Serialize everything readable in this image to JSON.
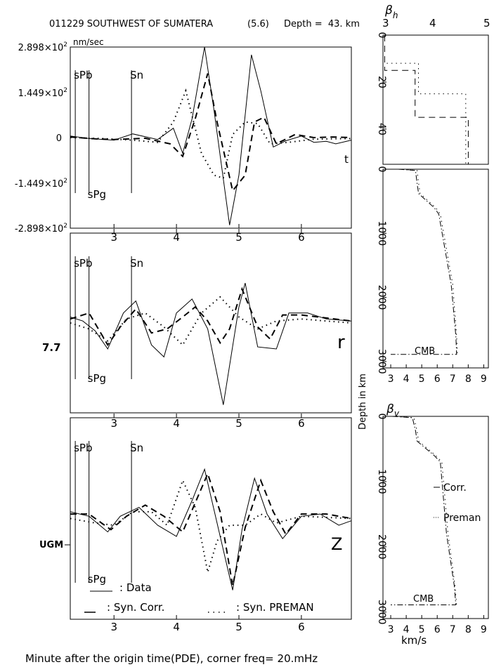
{
  "header": {
    "event": "011229 SOUTHWEST OF SUMATERA",
    "magnitude": "(5.6)",
    "depth": "Depth =  43. km",
    "beta_h_label": "β",
    "beta_h_sub": "h",
    "top_ticks": [
      "3",
      "4",
      "5"
    ]
  },
  "footer": "Minute after the origin time(PDE), corner freq= 20.mHz",
  "legend": {
    "data": ": Data",
    "corr": ": Syn. Corr.",
    "preman": ": Syn. PREMAN"
  },
  "chart_data": [
    {
      "type": "line",
      "panel": "t",
      "component_label": "t",
      "unit_label": "nm/sec",
      "xlim": [
        2.3,
        6.8
      ],
      "x_ticks": [
        "3",
        "4",
        "5",
        "6"
      ],
      "ylim": [
        -289.8,
        289.8
      ],
      "y_ticks": [
        {
          "value": 289.8,
          "label": "2.898×10",
          "exp": "2"
        },
        {
          "value": 144.9,
          "label": "1.449×10",
          "exp": "2"
        },
        {
          "value": 0,
          "label": "0",
          "exp": ""
        },
        {
          "value": -144.9,
          "label": "-1.449×10",
          "exp": "2"
        },
        {
          "value": -289.8,
          "label": "-2.898×10",
          "exp": "2"
        }
      ],
      "phases": [
        {
          "name": "sPb",
          "x": 2.38
        },
        {
          "name": "sPg",
          "x": 2.6
        },
        {
          "name": "Sn",
          "x": 3.28
        }
      ],
      "series": [
        {
          "name": "Data",
          "style": "solid",
          "points": [
            [
              2.3,
              5
            ],
            [
              2.6,
              -3
            ],
            [
              3.0,
              -8
            ],
            [
              3.3,
              12
            ],
            [
              3.7,
              -6
            ],
            [
              3.95,
              30
            ],
            [
              4.1,
              -50
            ],
            [
              4.25,
              60
            ],
            [
              4.45,
              290
            ],
            [
              4.6,
              90
            ],
            [
              4.85,
              -280
            ],
            [
              5.0,
              -120
            ],
            [
              5.2,
              265
            ],
            [
              5.35,
              150
            ],
            [
              5.55,
              -30
            ],
            [
              5.75,
              -10
            ],
            [
              6.0,
              5
            ],
            [
              6.2,
              -15
            ],
            [
              6.4,
              -12
            ],
            [
              6.55,
              -20
            ],
            [
              6.8,
              -8
            ]
          ]
        },
        {
          "name": "Syn. Corr.",
          "style": "dashed",
          "points": [
            [
              2.3,
              2
            ],
            [
              2.7,
              -4
            ],
            [
              3.0,
              -6
            ],
            [
              3.5,
              -2
            ],
            [
              3.9,
              -20
            ],
            [
              4.1,
              -60
            ],
            [
              4.3,
              60
            ],
            [
              4.5,
              205
            ],
            [
              4.65,
              50
            ],
            [
              4.9,
              -170
            ],
            [
              5.1,
              -120
            ],
            [
              5.25,
              50
            ],
            [
              5.4,
              65
            ],
            [
              5.6,
              -20
            ],
            [
              5.9,
              10
            ],
            [
              6.2,
              0
            ],
            [
              6.5,
              2
            ],
            [
              6.8,
              0
            ]
          ]
        },
        {
          "name": "Syn. PREMAN",
          "style": "dotted",
          "points": [
            [
              2.3,
              0
            ],
            [
              2.8,
              -3
            ],
            [
              3.3,
              -8
            ],
            [
              3.7,
              -15
            ],
            [
              3.95,
              50
            ],
            [
              4.15,
              150
            ],
            [
              4.4,
              -50
            ],
            [
              4.6,
              -120
            ],
            [
              4.75,
              -130
            ],
            [
              4.9,
              10
            ],
            [
              5.1,
              50
            ],
            [
              5.3,
              45
            ],
            [
              5.5,
              -20
            ],
            [
              5.8,
              -15
            ],
            [
              6.2,
              -5
            ],
            [
              6.8,
              -3
            ]
          ]
        }
      ]
    },
    {
      "type": "line",
      "panel": "r",
      "component_label": "r",
      "scale_label": "7.7",
      "xlim": [
        2.3,
        6.8
      ],
      "x_ticks": [
        "3",
        "4",
        "5",
        "6"
      ],
      "ylim": [
        -4.5,
        4.5
      ],
      "phases": [
        {
          "name": "sPb",
          "x": 2.38
        },
        {
          "name": "sPg",
          "x": 2.6
        },
        {
          "name": "Sn",
          "x": 3.28
        }
      ],
      "series": [
        {
          "name": "Data",
          "style": "solid",
          "points": [
            [
              2.3,
              0.3
            ],
            [
              2.5,
              0.1
            ],
            [
              2.7,
              -0.4
            ],
            [
              2.9,
              -1.3
            ],
            [
              3.15,
              0.5
            ],
            [
              3.35,
              1.1
            ],
            [
              3.6,
              -1.1
            ],
            [
              3.8,
              -1.7
            ],
            [
              4.0,
              0.5
            ],
            [
              4.25,
              1.2
            ],
            [
              4.5,
              -0.3
            ],
            [
              4.75,
              -4.1
            ],
            [
              5.0,
              0.8
            ],
            [
              5.1,
              2.0
            ],
            [
              5.3,
              -1.2
            ],
            [
              5.6,
              -1.3
            ],
            [
              5.8,
              0.5
            ],
            [
              6.1,
              0.5
            ],
            [
              6.4,
              0.2
            ],
            [
              6.8,
              0.1
            ]
          ]
        },
        {
          "name": "Syn. Corr.",
          "style": "dashed",
          "points": [
            [
              2.3,
              0.2
            ],
            [
              2.6,
              0.5
            ],
            [
              2.9,
              -1.1
            ],
            [
              3.1,
              -0.2
            ],
            [
              3.35,
              0.7
            ],
            [
              3.6,
              -0.5
            ],
            [
              3.85,
              -0.3
            ],
            [
              4.1,
              0.3
            ],
            [
              4.3,
              0.8
            ],
            [
              4.5,
              0.1
            ],
            [
              4.7,
              -1.0
            ],
            [
              4.85,
              -0.3
            ],
            [
              5.05,
              1.7
            ],
            [
              5.3,
              -0.2
            ],
            [
              5.5,
              -0.8
            ],
            [
              5.7,
              0.4
            ],
            [
              6.0,
              0.4
            ],
            [
              6.8,
              0.1
            ]
          ]
        },
        {
          "name": "Syn. PREMAN",
          "style": "dotted",
          "points": [
            [
              2.3,
              0
            ],
            [
              2.6,
              -0.3
            ],
            [
              2.9,
              -0.9
            ],
            [
              3.2,
              0.2
            ],
            [
              3.5,
              0.5
            ],
            [
              3.8,
              -0.2
            ],
            [
              4.1,
              -1.1
            ],
            [
              4.4,
              0.5
            ],
            [
              4.7,
              1.3
            ],
            [
              5.0,
              0.3
            ],
            [
              5.3,
              -0.3
            ],
            [
              5.6,
              0.1
            ],
            [
              6.0,
              0.2
            ],
            [
              6.4,
              0.1
            ],
            [
              6.8,
              0
            ]
          ]
        }
      ]
    },
    {
      "type": "line",
      "panel": "Z",
      "component_label": "Z",
      "station_label": "UGM",
      "xlim": [
        2.3,
        6.8
      ],
      "x_ticks": [
        "3",
        "4",
        "5",
        "6"
      ],
      "ylim": [
        -4.5,
        4.5
      ],
      "phases": [
        {
          "name": "sPb",
          "x": 2.38
        },
        {
          "name": "sPg",
          "x": 2.6
        },
        {
          "name": "Sn",
          "x": 3.28
        }
      ],
      "series": [
        {
          "name": "Data",
          "style": "solid",
          "points": [
            [
              2.3,
              0.3
            ],
            [
              2.6,
              0.1
            ],
            [
              2.9,
              -0.6
            ],
            [
              3.1,
              0.1
            ],
            [
              3.4,
              0.5
            ],
            [
              3.7,
              -0.3
            ],
            [
              4.0,
              -0.8
            ],
            [
              4.25,
              0.8
            ],
            [
              4.45,
              2.2
            ],
            [
              4.65,
              -0.2
            ],
            [
              4.9,
              -3.2
            ],
            [
              5.05,
              -0.5
            ],
            [
              5.25,
              1.8
            ],
            [
              5.45,
              0.2
            ],
            [
              5.7,
              -0.9
            ],
            [
              6.0,
              0.1
            ],
            [
              6.3,
              0.2
            ],
            [
              6.6,
              -0.3
            ],
            [
              6.8,
              -0.1
            ]
          ]
        },
        {
          "name": "Syn. Corr.",
          "style": "dashed",
          "points": [
            [
              2.3,
              0.2
            ],
            [
              2.6,
              0.2
            ],
            [
              2.95,
              -0.5
            ],
            [
              3.2,
              0.1
            ],
            [
              3.5,
              0.6
            ],
            [
              3.8,
              0.1
            ],
            [
              4.1,
              -0.6
            ],
            [
              4.3,
              0.7
            ],
            [
              4.5,
              2.0
            ],
            [
              4.7,
              0.3
            ],
            [
              4.9,
              -3.0
            ],
            [
              5.1,
              -0.4
            ],
            [
              5.35,
              1.7
            ],
            [
              5.55,
              0.3
            ],
            [
              5.75,
              -0.7
            ],
            [
              6.0,
              0.2
            ],
            [
              6.4,
              0.2
            ],
            [
              6.8,
              0
            ]
          ]
        },
        {
          "name": "Syn. PREMAN",
          "style": "dotted",
          "points": [
            [
              2.3,
              0
            ],
            [
              2.7,
              -0.2
            ],
            [
              3.0,
              -0.3
            ],
            [
              3.3,
              0.3
            ],
            [
              3.6,
              0.3
            ],
            [
              3.85,
              -0.3
            ],
            [
              4.1,
              1.7
            ],
            [
              4.3,
              0.5
            ],
            [
              4.5,
              -2.4
            ],
            [
              4.65,
              -1.0
            ],
            [
              4.85,
              -0.3
            ],
            [
              5.1,
              -0.3
            ],
            [
              5.35,
              0.2
            ],
            [
              5.6,
              -0.2
            ],
            [
              6.0,
              0.1
            ],
            [
              6.8,
              0
            ]
          ]
        }
      ]
    },
    {
      "type": "line",
      "panel": "beta_h_shallow",
      "ylim": [
        0,
        55
      ],
      "xlim": [
        2.5,
        9.3
      ],
      "y_ticks": [
        "0",
        "20",
        "40"
      ],
      "series": [
        {
          "name": "Syn. Corr.",
          "style": "dashed",
          "points": [
            [
              2.7,
              0
            ],
            [
              2.7,
              15
            ],
            [
              4.5,
              15
            ],
            [
              4.5,
              35
            ],
            [
              7.65,
              35
            ],
            [
              7.65,
              55
            ]
          ]
        },
        {
          "name": "Syn. PREMAN",
          "style": "dotted",
          "points": [
            [
              2.6,
              0
            ],
            [
              2.6,
              12
            ],
            [
              4.7,
              12
            ],
            [
              4.7,
              25
            ],
            [
              7.5,
              25
            ],
            [
              7.5,
              55
            ]
          ]
        }
      ]
    },
    {
      "type": "line",
      "panel": "beta_h",
      "ylim": [
        0,
        3100
      ],
      "xlim": [
        2.5,
        9.3
      ],
      "y_ticks": [
        "0",
        "1000",
        "2000",
        "3000"
      ],
      "x_ticks": [
        "3",
        "4",
        "5",
        "6",
        "7",
        "8",
        "9"
      ],
      "cmb_label": "CMB",
      "series": [
        {
          "name": "Syn. Corr.",
          "style": "dashdot",
          "points": [
            [
              3.5,
              0
            ],
            [
              4.6,
              20
            ],
            [
              4.7,
              220
            ],
            [
              4.8,
              380
            ],
            [
              5.8,
              600
            ],
            [
              6.1,
              700
            ],
            [
              6.9,
              1800
            ],
            [
              7.2,
              2600
            ],
            [
              7.25,
              2890
            ],
            [
              3.0,
              2890
            ]
          ]
        },
        {
          "name": "Syn. PREMAN",
          "style": "dotted",
          "points": [
            [
              3.5,
              0
            ],
            [
              4.7,
              20
            ],
            [
              4.8,
              220
            ],
            [
              4.9,
              380
            ],
            [
              5.9,
              600
            ],
            [
              6.2,
              700
            ],
            [
              7.0,
              1800
            ],
            [
              7.25,
              2600
            ],
            [
              7.3,
              2890
            ]
          ]
        }
      ]
    },
    {
      "type": "line",
      "panel": "beta_v",
      "title": "β",
      "title_sub": "v",
      "ylabel": "Depth in km",
      "xlabel": "km/s",
      "ylim": [
        0,
        3100
      ],
      "xlim": [
        2.5,
        9.3
      ],
      "y_ticks": [
        "0",
        "1000",
        "2000",
        "3000"
      ],
      "x_ticks": [
        "3",
        "4",
        "5",
        "6",
        "7",
        "8",
        "9"
      ],
      "cmb_label": "CMB",
      "legend_corr": "Corr.",
      "legend_preman": "Preman",
      "series": [
        {
          "name": "Syn. Corr.",
          "style": "dashdot",
          "points": [
            [
              3.1,
              0
            ],
            [
              4.4,
              20
            ],
            [
              4.6,
              220
            ],
            [
              4.7,
              380
            ],
            [
              5.8,
              600
            ],
            [
              6.2,
              700
            ],
            [
              6.6,
              1800
            ],
            [
              7.1,
              2600
            ],
            [
              7.2,
              2890
            ],
            [
              3.0,
              2890
            ]
          ]
        },
        {
          "name": "Syn. PREMAN",
          "style": "dotted",
          "points": [
            [
              3.1,
              0
            ],
            [
              4.5,
              20
            ],
            [
              4.7,
              220
            ],
            [
              4.8,
              380
            ],
            [
              5.9,
              600
            ],
            [
              6.3,
              700
            ],
            [
              6.7,
              1800
            ],
            [
              7.15,
              2600
            ],
            [
              7.25,
              2890
            ]
          ]
        }
      ]
    }
  ]
}
